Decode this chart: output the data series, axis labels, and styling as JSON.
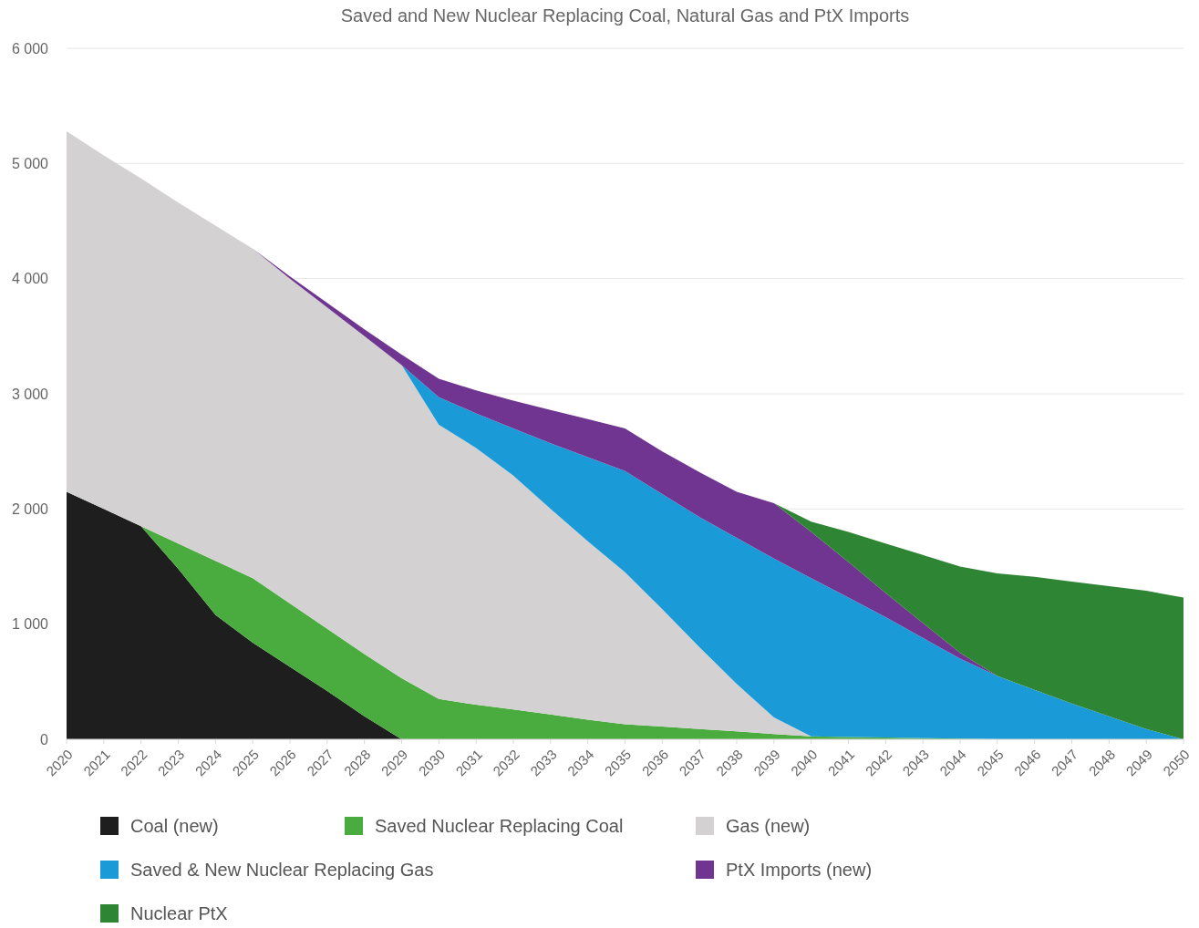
{
  "chart_data": {
    "type": "area",
    "title": "Saved and New Nuclear Replacing Coal, Natural Gas and PtX Imports",
    "stacked": true,
    "grid": "y",
    "legend": "bottom",
    "x": [
      2020,
      2021,
      2022,
      2023,
      2024,
      2025,
      2026,
      2027,
      2028,
      2029,
      2030,
      2031,
      2032,
      2033,
      2034,
      2035,
      2036,
      2037,
      2038,
      2039,
      2040,
      2041,
      2042,
      2043,
      2044,
      2045,
      2046,
      2047,
      2048,
      2049,
      2050
    ],
    "xlim": [
      2020,
      2050
    ],
    "xticks": [
      2020,
      2021,
      2022,
      2023,
      2024,
      2025,
      2026,
      2027,
      2028,
      2029,
      2030,
      2031,
      2032,
      2033,
      2034,
      2035,
      2036,
      2037,
      2038,
      2039,
      2040,
      2041,
      2042,
      2043,
      2044,
      2045,
      2046,
      2047,
      2048,
      2049,
      2050
    ],
    "ylim": [
      0,
      6000
    ],
    "yticks": [
      0,
      {
        "value": 1000,
        "label": "1 000"
      },
      {
        "value": 2000,
        "label": "2 000"
      },
      {
        "value": 3000,
        "label": "3 000"
      },
      {
        "value": 4000,
        "label": "4 000"
      },
      {
        "value": 5000,
        "label": "5 000"
      },
      {
        "value": 6000,
        "label": "6 000"
      }
    ],
    "series": [
      {
        "name": "Coal (new)",
        "color": "#1e1e1e",
        "values": [
          2150,
          2000,
          1850,
          1480,
          1080,
          840,
          630,
          420,
          200,
          0,
          0,
          0,
          0,
          0,
          0,
          0,
          0,
          0,
          0,
          0,
          0,
          0,
          0,
          0,
          0,
          0,
          0,
          0,
          0,
          0,
          0
        ]
      },
      {
        "name": "Saved Nuclear Replacing Coal",
        "color": "#4aab3e",
        "values": [
          null,
          null,
          0,
          220,
          470,
          560,
          550,
          540,
          540,
          530,
          350,
          300,
          260,
          215,
          170,
          130,
          110,
          90,
          70,
          45,
          25,
          20,
          15,
          10,
          5,
          0,
          0,
          0,
          0,
          0,
          0
        ]
      },
      {
        "name": "Gas (new)",
        "color": "#d3d1d2",
        "values": [
          3130,
          3070,
          3020,
          2960,
          2910,
          2860,
          2820,
          2790,
          2760,
          2720,
          2380,
          2230,
          2030,
          1785,
          1550,
          1320,
          1020,
          710,
          410,
          145,
          0,
          0,
          0,
          0,
          0,
          0,
          0,
          0,
          0,
          0,
          0
        ]
      },
      {
        "name": "Saved & New Nuclear Replacing Gas",
        "color": "#1a9bd7",
        "values": [
          null,
          null,
          null,
          null,
          null,
          null,
          null,
          null,
          null,
          0,
          240,
          300,
          410,
          570,
          730,
          880,
          1000,
          1130,
          1270,
          1380,
          1375,
          1210,
          1045,
          870,
          695,
          550,
          430,
          310,
          200,
          90,
          0
        ]
      },
      {
        "name": "PtX Imports (new)",
        "color": "#6f3590",
        "values": [
          null,
          null,
          null,
          null,
          null,
          0,
          20,
          40,
          60,
          90,
          160,
          200,
          240,
          290,
          330,
          370,
          370,
          390,
          400,
          480,
          400,
          310,
          210,
          130,
          50,
          0,
          0,
          0,
          0,
          0,
          0
        ]
      },
      {
        "name": "Nuclear PtX",
        "color": "#2e8533",
        "values": [
          null,
          null,
          null,
          null,
          null,
          null,
          null,
          null,
          null,
          null,
          null,
          null,
          null,
          null,
          null,
          null,
          null,
          null,
          null,
          0,
          90,
          260,
          430,
          590,
          750,
          890,
          980,
          1060,
          1130,
          1200,
          1230
        ]
      }
    ]
  }
}
